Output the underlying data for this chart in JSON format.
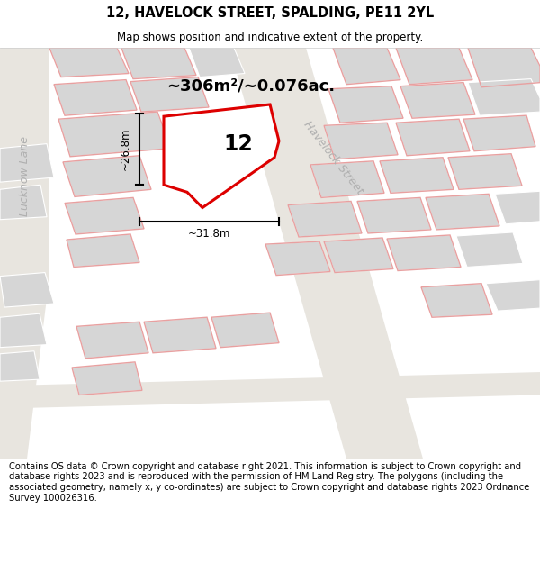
{
  "title": "12, HAVELOCK STREET, SPALDING, PE11 2YL",
  "subtitle": "Map shows position and indicative extent of the property.",
  "footer": "Contains OS data © Crown copyright and database right 2021. This information is subject to Crown copyright and database rights 2023 and is reproduced with the permission of HM Land Registry. The polygons (including the associated geometry, namely x, y co-ordinates) are subject to Crown copyright and database rights 2023 Ordnance Survey 100026316.",
  "area_label": "~306m²/~0.076ac.",
  "number_label": "12",
  "width_label": "~31.8m",
  "height_label": "~26.8m",
  "street_label": "Havelock Street",
  "lane_label": "Lucknow Lane",
  "map_bg": "#eeebe6",
  "building_fill": "#d6d6d6",
  "building_edge": "#ffffff",
  "road_fill": "#f5f3f0",
  "red_line_color": "#dd0000",
  "pink_line_color": "#e8a0a0",
  "prop_fill": "#ffffff",
  "gray_text": "#b0b0b0",
  "title_fontsize": 10.5,
  "subtitle_fontsize": 8.5,
  "footer_fontsize": 7.2,
  "area_fontsize": 13,
  "number_fontsize": 17,
  "label_fontsize": 8.5,
  "street_fontsize": 9,
  "lane_fontsize": 9
}
